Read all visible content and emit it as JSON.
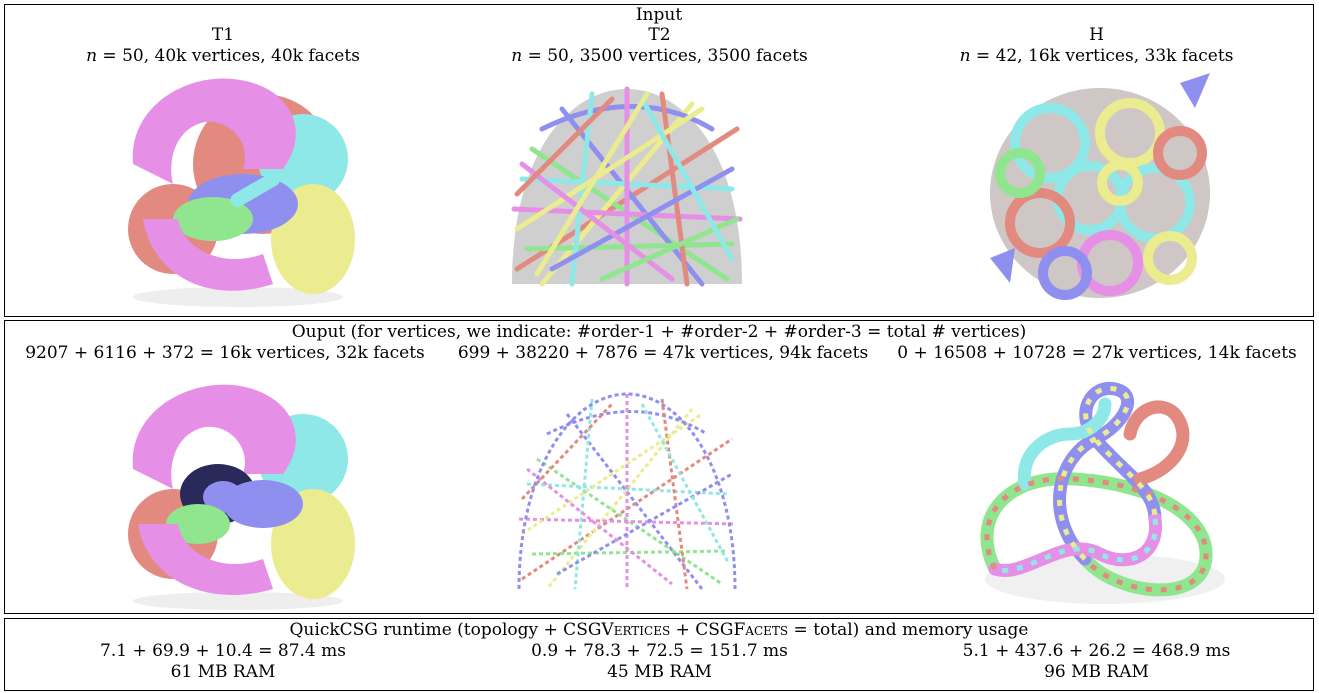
{
  "input": {
    "title": "Input",
    "models": [
      {
        "name": "T1",
        "n_label": "n",
        "stats": " = 50, 40k vertices, 40k facets"
      },
      {
        "name": "T2",
        "n_label": "n",
        "stats": " = 50, 3500 vertices, 3500 facets"
      },
      {
        "name": "H",
        "n_label": "n",
        "stats": " = 42, 16k vertices, 33k facets"
      }
    ]
  },
  "output": {
    "title": "Ouput (for vertices, we indicate: #order-1 + #order-2 + #order-3 = total # vertices)",
    "stats": [
      "9207 + 6116 + 372 = 16k vertices, 32k facets",
      "699 + 38220 + 7876 = 47k vertices, 94k facets",
      "0 + 16508 + 10728 = 27k vertices, 14k facets"
    ]
  },
  "runtime": {
    "title_pre": "QuickCSG runtime (topology + CSG",
    "title_v": "Vertices",
    "title_mid": " + CSG",
    "title_f": "Facets",
    "title_post": " = total) and memory usage",
    "times": [
      "7.1 + 69.9 + 10.4 = 87.4 ms",
      "0.9 + 78.3 + 72.5 = 151.7 ms",
      "5.1 + 437.6 + 26.2 = 468.9 ms"
    ],
    "memory": [
      "61 MB RAM",
      "45 MB RAM",
      "96 MB RAM"
    ]
  },
  "colors": {
    "pink": "#e58fe6",
    "cyan": "#8fe8e8",
    "blue": "#8f8ff0",
    "green": "#8fe68f",
    "red": "#e38a80",
    "yellow": "#ebeb8f"
  }
}
